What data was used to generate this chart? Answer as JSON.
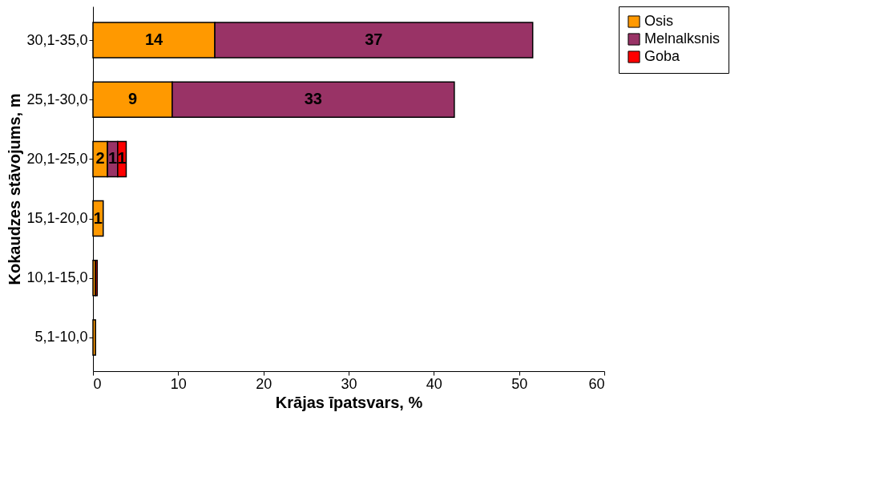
{
  "chart_data": {
    "type": "bar",
    "orientation": "horizontal",
    "stacked": true,
    "categories": [
      "30,1-35,0",
      "25,1-30,0",
      "20,1-25,0",
      "15,1-20,0",
      "10,1-15,0",
      "5,1-10,0"
    ],
    "series": [
      {
        "name": "Osis",
        "color": "#ff9900",
        "values": [
          14.3,
          9.3,
          1.7,
          1.2,
          0.3,
          0.3
        ],
        "value_labels": [
          "14",
          "9",
          "2",
          "1",
          null,
          null
        ]
      },
      {
        "name": "Melnalksnis",
        "color": "#993366",
        "values": [
          37.3,
          33.1,
          1.2,
          null,
          null,
          null
        ],
        "value_labels": [
          "37",
          "33",
          "1",
          null,
          null,
          null
        ]
      },
      {
        "name": "Goba",
        "color": "#ff0000",
        "values": [
          null,
          null,
          1.0,
          null,
          0.2,
          null
        ],
        "value_labels": [
          null,
          null,
          "1",
          null,
          null,
          null
        ]
      }
    ],
    "xlim": [
      0,
      60
    ],
    "xticks": [
      0,
      10,
      20,
      30,
      40,
      50,
      60
    ],
    "xlabel": "Krājas īpatsvars, %",
    "ylabel": "Kokaudzes stāvojums, m",
    "legend": "right",
    "grid": false
  }
}
